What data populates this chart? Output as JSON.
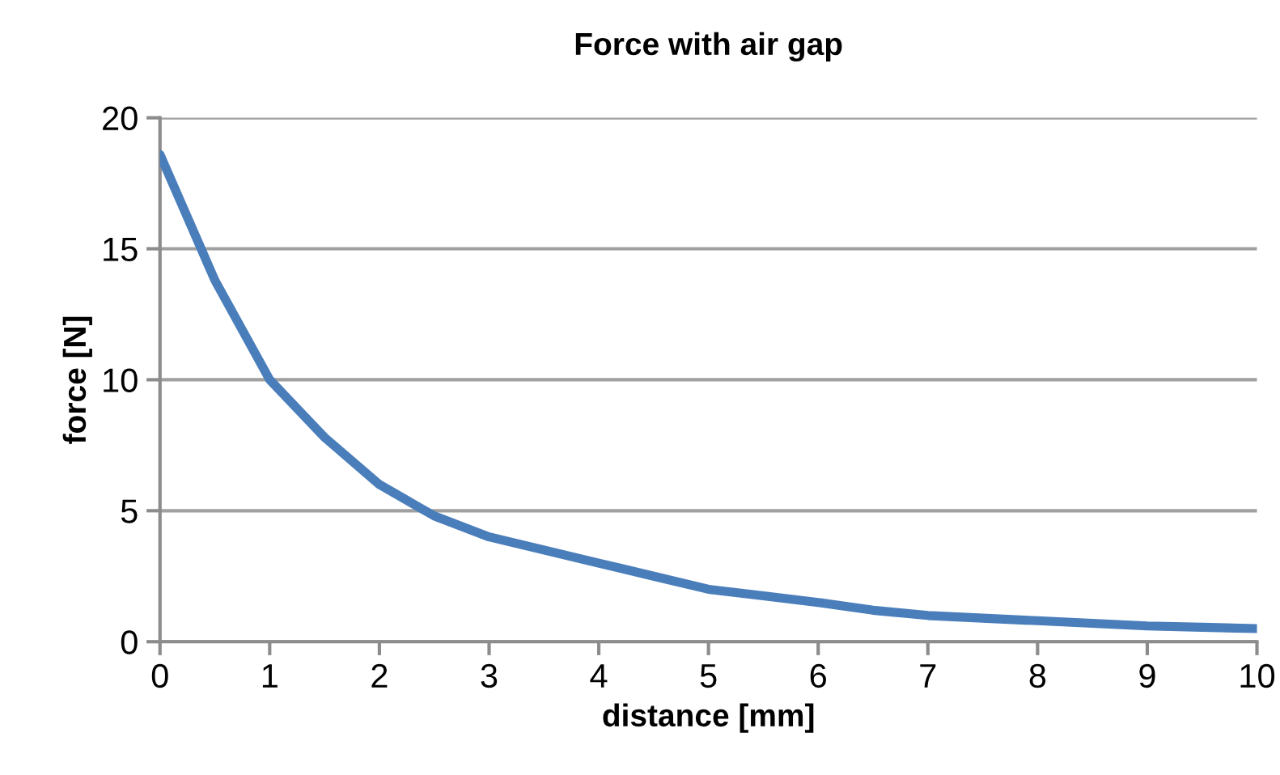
{
  "chart_data": {
    "type": "line",
    "title": "Force with air gap",
    "xlabel": "distance [mm]",
    "ylabel": "force [N]",
    "x": [
      0,
      0.5,
      1,
      1.5,
      2,
      2.5,
      3,
      3.5,
      4,
      4.5,
      5,
      5.5,
      6,
      6.5,
      7,
      7.5,
      8,
      8.5,
      9,
      9.5,
      10
    ],
    "series": [
      {
        "color": "#4a7ebb",
        "values": [
          18.6,
          13.8,
          10,
          7.8,
          6,
          4.8,
          4,
          3.5,
          3,
          2.5,
          2,
          1.75,
          1.5,
          1.2,
          1,
          0.9,
          0.8,
          0.7,
          0.6,
          0.55,
          0.5
        ]
      }
    ],
    "xlim": [
      0,
      10
    ],
    "xticks": [
      0,
      1,
      2,
      3,
      4,
      5,
      6,
      7,
      8,
      9,
      10
    ],
    "ylim": [
      0,
      20
    ],
    "yticks": [
      0,
      5,
      10,
      15,
      20
    ],
    "grid": "y",
    "marker": "none",
    "line_style": "solid"
  }
}
